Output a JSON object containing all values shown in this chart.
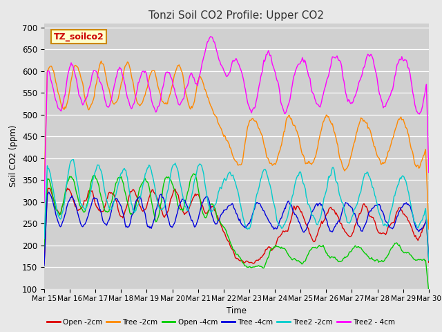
{
  "title": "Tonzi Soil CO2 Profile: Upper CO2",
  "xlabel": "Time",
  "ylabel": "Soil CO2 (ppm)",
  "ylim": [
    100,
    710
  ],
  "yticks": [
    100,
    150,
    200,
    250,
    300,
    350,
    400,
    450,
    500,
    550,
    600,
    650,
    700
  ],
  "legend_label": "TZ_soilco2",
  "series_labels": [
    "Open -2cm",
    "Tree -2cm",
    "Open -4cm",
    "Tree -4cm",
    "Tree2 -2cm",
    "Tree2 - 4cm"
  ],
  "series_colors": [
    "#dd0000",
    "#ff8800",
    "#00cc00",
    "#0000dd",
    "#00cccc",
    "#ff00ff"
  ],
  "background_color": "#e8e8e8",
  "plot_bg_color": "#d8d8d8",
  "n_points": 500,
  "x_start": 15,
  "x_end": 30,
  "xtick_labels": [
    "Mar 15",
    "Mar 16",
    "Mar 17",
    "Mar 18",
    "Mar 19",
    "Mar 20",
    "Mar 21",
    "Mar 22",
    "Mar 23",
    "Mar 24",
    "Mar 25",
    "Mar 26",
    "Mar 27",
    "Mar 28",
    "Mar 29",
    "Mar 30"
  ],
  "xtick_positions": [
    15,
    16,
    17,
    18,
    19,
    20,
    21,
    22,
    23,
    24,
    25,
    26,
    27,
    28,
    29,
    30
  ]
}
